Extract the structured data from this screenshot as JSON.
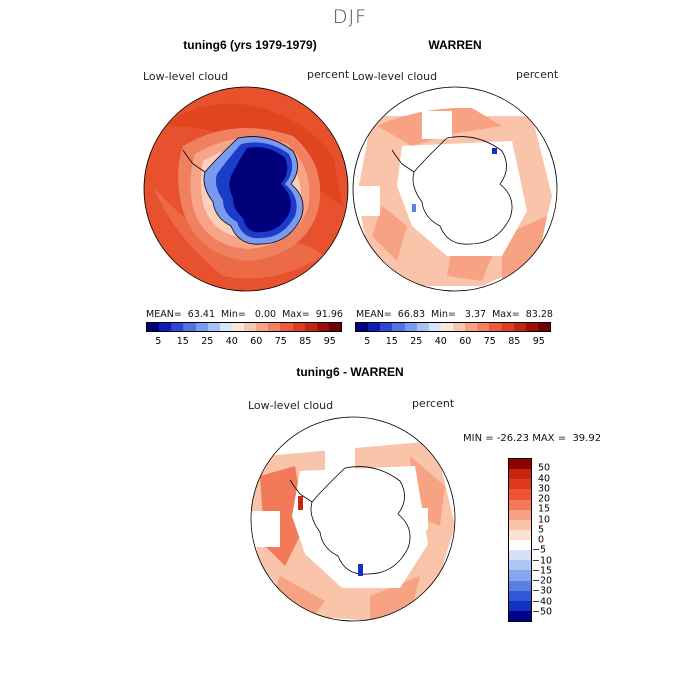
{
  "season": "DJF",
  "panels": [
    {
      "title": "tuning6 (yrs 1979-1979)",
      "variable": "Low-level cloud",
      "units": "percent",
      "stats": "MEAN=  63.41  Min=   0.00  Max=  91.96"
    },
    {
      "title": "WARREN",
      "variable": "Low-level cloud",
      "units": "percent",
      "stats": "MEAN=  66.83  Min=   3.37  Max=  83.28"
    },
    {
      "title": "tuning6 - WARREN",
      "variable": "Low-level cloud",
      "units": "percent",
      "stats": "MIN = -26.23 MAX =  39.92"
    }
  ],
  "colorbar_abs": {
    "labels": [
      "5",
      "15",
      "25",
      "40",
      "60",
      "75",
      "85",
      "95"
    ],
    "colors": [
      "#00007a",
      "#0a1fb0",
      "#2a48d8",
      "#4f72e4",
      "#7a9af0",
      "#a9c2f4",
      "#d8e4f7",
      "#fbe6dc",
      "#f9c6ae",
      "#f6a487",
      "#f28260",
      "#ec5c3a",
      "#de3b1f",
      "#c42512",
      "#9c0e07",
      "#6e0000"
    ]
  },
  "colorbar_diff": {
    "labels": [
      "50",
      "40",
      "30",
      "20",
      "15",
      "10",
      "5",
      "0",
      "−5",
      "−10",
      "−15",
      "−20",
      "−30",
      "−40",
      "−50"
    ],
    "colors": [
      "#8b0000",
      "#c7250f",
      "#e0391c",
      "#ed5534",
      "#f27a58",
      "#f6a283",
      "#f9c4aa",
      "#fbe1d2",
      "#ffffff",
      "#d5e2f6",
      "#aec6f2",
      "#86a6ec",
      "#5a80e2",
      "#3058d8",
      "#1432c0",
      "#00008a"
    ]
  },
  "map_colors": {
    "ocean_high": "#e8512e",
    "ocean_mid": "#f08060",
    "ocean_light": "#f6a587",
    "ocean_pale": "#fad0bd",
    "land_deep": "#00007a",
    "land_mid": "#1a3cc8",
    "land_light": "#7a9af0"
  }
}
